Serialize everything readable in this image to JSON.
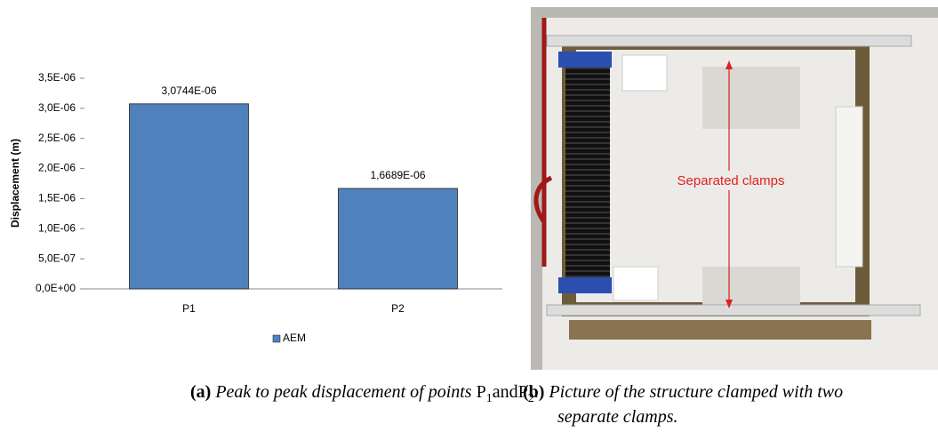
{
  "chart_data": {
    "type": "bar",
    "y_label": "Displacement (m)",
    "categories": [
      "P1",
      "P2"
    ],
    "series": [
      {
        "name": "AEM",
        "color": "#4f81bd",
        "values": [
          3.0744e-06,
          1.6689e-06
        ],
        "value_labels": [
          "3,0744E-06",
          "1,6689E-06"
        ]
      }
    ],
    "ylim": [
      0,
      3.5e-06
    ],
    "yticks": [
      {
        "value": 0,
        "label": "0,0E+00"
      },
      {
        "value": 5e-07,
        "label": "5,0E-07"
      },
      {
        "value": 1e-06,
        "label": "1,0E-06"
      },
      {
        "value": 1.5e-06,
        "label": "1,5E-06"
      },
      {
        "value": 2e-06,
        "label": "2,0E-06"
      },
      {
        "value": 2.5e-06,
        "label": "2,5E-06"
      },
      {
        "value": 3e-06,
        "label": "3,0E-06"
      },
      {
        "value": 3.5e-06,
        "label": "3,5E-06"
      }
    ],
    "legend": "bottom"
  },
  "caption_a": {
    "label": "(a)",
    "parts": [
      "Peak to peak displacement of points ",
      "P",
      "1",
      "and",
      "P",
      "2",
      "."
    ]
  },
  "caption_b": {
    "label": "(b)",
    "lines": [
      "Picture of the structure clamped with two",
      "separate clamps."
    ]
  },
  "photo": {
    "annotation": "Separated clamps"
  }
}
